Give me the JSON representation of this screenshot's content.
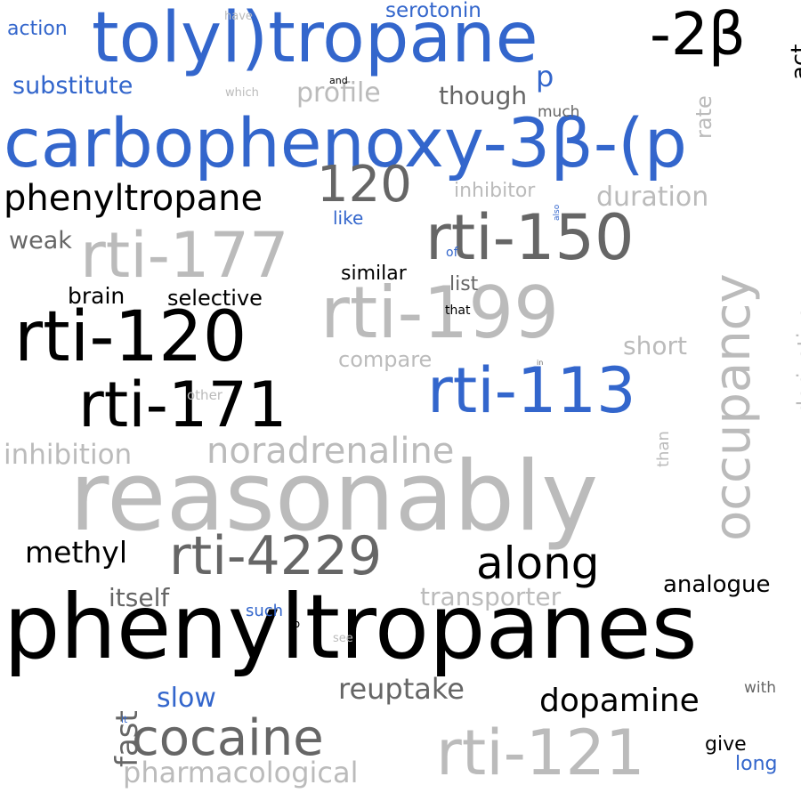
{
  "colors": {
    "background": "#ffffff",
    "palette": [
      "#000000",
      "#3366cc",
      "#666666",
      "#bbbbbb"
    ]
  },
  "words": [
    {
      "text": "reasonably",
      "color": "#bbbbbb",
      "orientation": "horizontal"
    },
    {
      "text": "phenyltropanes",
      "color": "#000000",
      "orientation": "horizontal"
    },
    {
      "text": "carbophenoxy-3β-(p",
      "color": "#3366cc",
      "orientation": "horizontal"
    },
    {
      "text": "tolyl)tropane",
      "color": "#3366cc",
      "orientation": "horizontal"
    },
    {
      "text": "-2β",
      "color": "#000000",
      "orientation": "horizontal"
    },
    {
      "text": "rti-120",
      "color": "#000000",
      "orientation": "horizontal"
    },
    {
      "text": "rti-199",
      "color": "#bbbbbb",
      "orientation": "horizontal"
    },
    {
      "text": "rti-177",
      "color": "#bbbbbb",
      "orientation": "horizontal"
    },
    {
      "text": "rti-150",
      "color": "#666666",
      "orientation": "horizontal"
    },
    {
      "text": "rti-171",
      "color": "#000000",
      "orientation": "horizontal"
    },
    {
      "text": "rti-113",
      "color": "#3366cc",
      "orientation": "horizontal"
    },
    {
      "text": "rti-121",
      "color": "#bbbbbb",
      "orientation": "horizontal"
    },
    {
      "text": "rti-4229",
      "color": "#666666",
      "orientation": "horizontal"
    },
    {
      "text": "occupancy",
      "color": "#bbbbbb",
      "orientation": "vertical"
    },
    {
      "text": "cocaine",
      "color": "#666666",
      "orientation": "horizontal"
    },
    {
      "text": "noradrenaline",
      "color": "#bbbbbb",
      "orientation": "horizontal"
    },
    {
      "text": "along",
      "color": "#000000",
      "orientation": "horizontal"
    },
    {
      "text": "phenyltropane",
      "color": "#000000",
      "orientation": "horizontal"
    },
    {
      "text": "120",
      "color": "#666666",
      "orientation": "horizontal"
    },
    {
      "text": "dopamine",
      "color": "#000000",
      "orientation": "horizontal"
    },
    {
      "text": "reuptake",
      "color": "#666666",
      "orientation": "horizontal"
    },
    {
      "text": "pharmacological",
      "color": "#bbbbbb",
      "orientation": "horizontal"
    },
    {
      "text": "inhibition",
      "color": "#bbbbbb",
      "orientation": "horizontal"
    },
    {
      "text": "duration",
      "color": "#bbbbbb",
      "orientation": "horizontal"
    },
    {
      "text": "methyl",
      "color": "#000000",
      "orientation": "horizontal"
    },
    {
      "text": "transporter",
      "color": "#bbbbbb",
      "orientation": "horizontal"
    },
    {
      "text": "analogue",
      "color": "#000000",
      "orientation": "horizontal"
    },
    {
      "text": "itself",
      "color": "#666666",
      "orientation": "horizontal"
    },
    {
      "text": "profile",
      "color": "#bbbbbb",
      "orientation": "horizontal"
    },
    {
      "text": "though",
      "color": "#666666",
      "orientation": "horizontal"
    },
    {
      "text": "p",
      "color": "#3366cc",
      "orientation": "horizontal"
    },
    {
      "text": "substitute",
      "color": "#3366cc",
      "orientation": "horizontal"
    },
    {
      "text": "serotonin",
      "color": "#3366cc",
      "orientation": "horizontal"
    },
    {
      "text": "action",
      "color": "#3366cc",
      "orientation": "horizontal"
    },
    {
      "text": "act",
      "color": "#000000",
      "orientation": "vertical"
    },
    {
      "text": "rate",
      "color": "#bbbbbb",
      "orientation": "vertical"
    },
    {
      "text": "fast",
      "color": "#666666",
      "orientation": "vertical"
    },
    {
      "text": "slow",
      "color": "#3366cc",
      "orientation": "horizontal"
    },
    {
      "text": "short",
      "color": "#bbbbbb",
      "orientation": "horizontal"
    },
    {
      "text": "derivative",
      "color": "#bbbbbb",
      "orientation": "vertical"
    },
    {
      "text": "weak",
      "color": "#666666",
      "orientation": "horizontal"
    },
    {
      "text": "brain",
      "color": "#000000",
      "orientation": "horizontal"
    },
    {
      "text": "selective",
      "color": "#000000",
      "orientation": "horizontal"
    },
    {
      "text": "similar",
      "color": "#000000",
      "orientation": "horizontal"
    },
    {
      "text": "list",
      "color": "#666666",
      "orientation": "horizontal"
    },
    {
      "text": "compare",
      "color": "#bbbbbb",
      "orientation": "horizontal"
    },
    {
      "text": "inhibitor",
      "color": "#bbbbbb",
      "orientation": "horizontal"
    },
    {
      "text": "like",
      "color": "#3366cc",
      "orientation": "horizontal"
    },
    {
      "text": "give",
      "color": "#000000",
      "orientation": "horizontal"
    },
    {
      "text": "long",
      "color": "#3366cc",
      "orientation": "horizontal"
    },
    {
      "text": "such",
      "color": "#3366cc",
      "orientation": "horizontal"
    },
    {
      "text": "with",
      "color": "#666666",
      "orientation": "horizontal"
    },
    {
      "text": "than",
      "color": "#bbbbbb",
      "orientation": "vertical"
    },
    {
      "text": "much",
      "color": "#666666",
      "orientation": "horizontal"
    },
    {
      "text": "have",
      "color": "#bbbbbb",
      "orientation": "horizontal"
    },
    {
      "text": "which",
      "color": "#bbbbbb",
      "orientation": "horizontal"
    },
    {
      "text": "and",
      "color": "#000000",
      "orientation": "horizontal"
    },
    {
      "text": "other",
      "color": "#bbbbbb",
      "orientation": "horizontal"
    },
    {
      "text": "that",
      "color": "#000000",
      "orientation": "horizontal"
    },
    {
      "text": "of",
      "color": "#3366cc",
      "orientation": "horizontal"
    },
    {
      "text": "see",
      "color": "#bbbbbb",
      "orientation": "horizontal"
    },
    {
      "text": "to",
      "color": "#000000",
      "orientation": "horizontal"
    },
    {
      "text": "it",
      "color": "#3366cc",
      "orientation": "horizontal"
    },
    {
      "text": "also",
      "color": "#3366cc",
      "orientation": "vertical"
    },
    {
      "text": "in",
      "color": "#666666",
      "orientation": "horizontal"
    }
  ]
}
